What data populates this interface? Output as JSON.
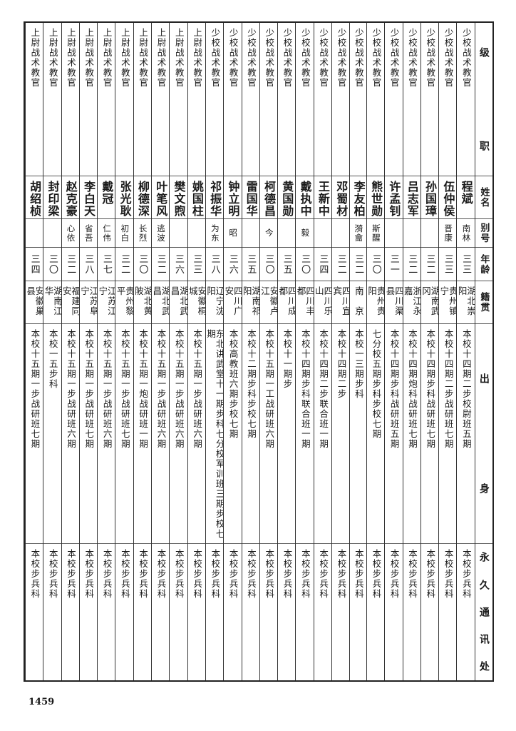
{
  "header": {
    "rank": [
      "级",
      "职"
    ],
    "name": "姓名",
    "alias": "别号",
    "age": "年龄",
    "native_place": "籍贯",
    "background": [
      "出",
      "身"
    ],
    "address": [
      "永",
      "久",
      "通",
      "讯",
      "处"
    ]
  },
  "rows": [
    {
      "rank": "少校战术教官",
      "name": "程斌",
      "alias": "南林",
      "age": "三三",
      "native_place": "湖北崇阳",
      "background": "本校十四期二步校尉班五期",
      "address": "本校步兵科"
    },
    {
      "rank": "少校战术教官",
      "name": "伍仲侯",
      "alias": "晋康",
      "age": "三三",
      "native_place": "贵州镇宁",
      "background": "本校十四期二步战研班七期",
      "address": "本校步兵科"
    },
    {
      "rank": "少校战术教官",
      "name": "孙国璋",
      "alias": "",
      "age": "三二",
      "native_place": "湖南武冈",
      "background": "本校十四期步科战研班七期",
      "address": "本校步兵科"
    },
    {
      "rank": "少校战术教官",
      "name": "吕志军",
      "alias": "",
      "age": "三二",
      "native_place": "浙江永嘉",
      "background": "本校十四期炮科战研班七期",
      "address": "本校步兵科"
    },
    {
      "rank": "少校战术教官",
      "name": "许孟钊",
      "alias": "",
      "age": "三一",
      "native_place": "四川渠县",
      "background": "本校十四期步科战研班五期",
      "address": "本校步兵科"
    },
    {
      "rank": "少校战术教官",
      "name": "熊世勋",
      "alias": "斯醒",
      "age": "三〇",
      "native_place": "贵州贵阳",
      "background": "七分校五期步科步校七期",
      "address": "本校步兵科"
    },
    {
      "rank": "少校战术教官",
      "name": "李友柏",
      "alias": "漪龠",
      "age": "三二",
      "native_place": "南　京",
      "background": "本校一三期步科",
      "address": "本校步兵科"
    },
    {
      "rank": "少校战术教官",
      "name": "邓蜀材",
      "alias": "",
      "age": "三二",
      "native_place": "四川宜宾",
      "background": "本校十四期二步",
      "address": "本校步兵科"
    },
    {
      "rank": "少校战术教官",
      "name": "王新中",
      "alias": "",
      "age": "三四",
      "native_place": "四川乐山",
      "background": "本校十四期二步联合班一期",
      "address": "本校步兵科"
    },
    {
      "rank": "少校战术教官",
      "name": "戴执中",
      "alias": "毅",
      "age": "三〇",
      "native_place": "四川丰都",
      "background": "本校十四期步科联合班一期",
      "address": "本校步兵科"
    },
    {
      "rank": "少校战术教官",
      "name": "黄国勋",
      "alias": "",
      "age": "三五",
      "native_place": "四川成都",
      "background": "本校十一期步",
      "address": "本校步兵科"
    },
    {
      "rank": "少校战术教官",
      "name": "柯德昌",
      "alias": "今",
      "age": "三〇",
      "native_place": "安徽卢江",
      "background": "本校十五期一工战研班六期",
      "address": "本校步兵科"
    },
    {
      "rank": "少校战术教官",
      "name": "雷国华",
      "alias": "",
      "age": "三五",
      "native_place": "湖南祁阳",
      "background": "本校十二期步科步校七期",
      "address": "本校步兵科"
    },
    {
      "rank": "少校战术教官",
      "name": "钟立明",
      "alias": "昭",
      "age": "三六",
      "native_place": "四川广安",
      "background": "本校高教班六期步校七期",
      "address": "本校步兵科"
    },
    {
      "rank": "少校战术教官",
      "name": "祁振华",
      "alias": "为东",
      "age": "三八",
      "native_place": "辽宁沈阳",
      "background": "东北讲武堂十一期步科七分校军训班三期步校七期",
      "address": "本校步兵科"
    },
    {
      "rank": "上尉战术教官",
      "name": "姚国柱",
      "alias": "",
      "age": "三三",
      "native_place": "安徽桐城",
      "background": "本校十五期一步战研班六期",
      "address": "本校步兵科"
    },
    {
      "rank": "上尉战术教官",
      "name": "樊文煦",
      "alias": "",
      "age": "三六",
      "native_place": "湖北武昌",
      "background": "本校十五期一步战研班六期",
      "address": "本校步兵科"
    },
    {
      "rank": "上尉战术教官",
      "name": "叶笔风",
      "alias": "逃波",
      "age": "三二",
      "native_place": "湖北武昌",
      "background": "本校十五期一步战研班六期",
      "address": "本校步兵科"
    },
    {
      "rank": "上尉战术教官",
      "name": "柳德深",
      "alias": "长烈",
      "age": "三〇",
      "native_place": "湖北黄陂",
      "background": "本校十五期一炮战研班一期",
      "address": "本校步兵科"
    },
    {
      "rank": "上尉战术教官",
      "name": "张光耿",
      "alias": "初白",
      "age": "三二",
      "native_place": "贵州黎平",
      "background": "本校十五期一步战研班七期",
      "address": "本校步兵科"
    },
    {
      "rank": "上尉战术教官",
      "name": "戴冠",
      "alias": "仁伟",
      "age": "三七",
      "native_place": "江苏江宁",
      "background": "本校十五期一步战研班六期",
      "address": "本校步兵科"
    },
    {
      "rank": "上尉战术教官",
      "name": "李白天",
      "alias": "省吾",
      "age": "三八",
      "native_place": "江苏阜宁",
      "background": "本校十五期一步战研班七期",
      "address": "本校步兵科"
    },
    {
      "rank": "上尉战术教官",
      "name": "赵克豪",
      "alias": "心依",
      "age": "三二",
      "native_place": "福建同安",
      "background": "本校十五期一步战研班六期",
      "address": "本校步兵科"
    },
    {
      "rank": "上尉战术教官",
      "name": "封印梁",
      "alias": "",
      "age": "三〇",
      "native_place": "湖南江华",
      "background": "本校一五步科",
      "address": "本校步兵科"
    },
    {
      "rank": "上尉战术教官",
      "name": "胡绍桢",
      "alias": "",
      "age": "三四",
      "native_place": "安徽巢县",
      "background": "本校十五期一步战研班七期",
      "address": "本校步兵科"
    }
  ],
  "page_number": "1459"
}
